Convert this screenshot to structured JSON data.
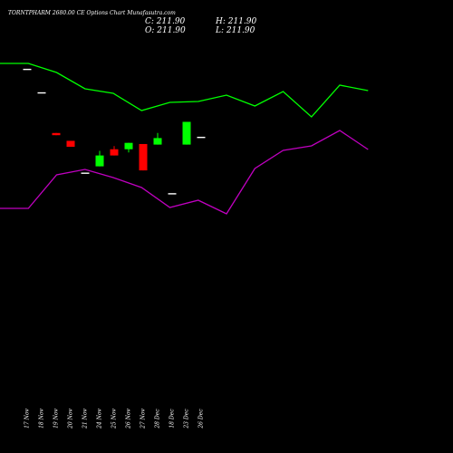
{
  "header": {
    "title": "TORNTPHARM 2680.00  CE Options  Chart Munafasutra.com",
    "close": "C: 211.90",
    "open": "O: 211.90",
    "high": "H: 211.90",
    "low": "L: 211.90"
  },
  "chart_data": {
    "type": "candlestick",
    "categories": [
      "17 Nov",
      "18 Nov",
      "19 Nov",
      "20 Nov",
      "21 Nov",
      "24 Nov",
      "25 Nov",
      "26 Nov",
      "27 Nov",
      "28 Dec",
      "18 Dec",
      "23 Dec",
      "26 Dec"
    ],
    "colors": {
      "background": "#000000",
      "up": "#00ff00",
      "down": "#ff0000",
      "neutral": "#ffffff",
      "line1": "#00ff00",
      "line2": "#c000c0"
    },
    "candles": [
      {
        "open": 258.8,
        "high": 258.8,
        "low": 258.8,
        "close": 258.8,
        "dir": "flat"
      },
      {
        "open": 242.6,
        "high": 242.6,
        "low": 242.6,
        "close": 242.6,
        "dir": "flat"
      },
      {
        "open": 214.5,
        "high": 214.5,
        "low": 213.0,
        "close": 213.0,
        "dir": "down"
      },
      {
        "open": 209.1,
        "high": 209.1,
        "low": 205.0,
        "close": 205.0,
        "dir": "down"
      },
      {
        "open": 187.2,
        "high": 187.2,
        "low": 187.2,
        "close": 187.2,
        "dir": "flat"
      },
      {
        "open": 191.5,
        "high": 202.2,
        "low": 191.5,
        "close": 199.0,
        "dir": "up"
      },
      {
        "open": 203.3,
        "high": 205.5,
        "low": 199.0,
        "close": 199.0,
        "dir": "down"
      },
      {
        "open": 203.3,
        "high": 207.7,
        "low": 201.1,
        "close": 207.7,
        "dir": "up"
      },
      {
        "open": 206.9,
        "high": 206.9,
        "low": 188.7,
        "close": 188.7,
        "dir": "down"
      },
      {
        "open": 206.5,
        "high": 214.5,
        "low": 206.5,
        "close": 211.0,
        "dir": "up"
      },
      {
        "open": 173.0,
        "high": 173.0,
        "low": 173.0,
        "close": 173.0,
        "dir": "flat"
      },
      {
        "open": 206.5,
        "high": 222.2,
        "low": 206.5,
        "close": 222.2,
        "dir": "up"
      },
      {
        "open": 211.9,
        "high": 211.9,
        "low": 211.9,
        "close": 211.9,
        "dir": "flat"
      }
    ],
    "line_series": [
      {
        "color": "#00ff00",
        "points": [
          [
            0,
            70
          ],
          [
            1,
            70
          ],
          [
            2,
            80
          ],
          [
            3,
            98
          ],
          [
            4,
            103
          ],
          [
            5,
            122
          ],
          [
            6,
            113
          ],
          [
            7,
            112
          ],
          [
            8,
            105
          ],
          [
            9,
            117
          ],
          [
            10,
            101
          ],
          [
            11,
            129
          ],
          [
            12,
            94
          ],
          [
            13,
            100
          ]
        ]
      },
      {
        "color": "#c000c0",
        "points": [
          [
            0,
            230
          ],
          [
            1,
            230
          ],
          [
            2,
            193
          ],
          [
            3,
            187
          ],
          [
            4,
            196
          ],
          [
            5,
            207
          ],
          [
            6,
            229
          ],
          [
            7,
            221
          ],
          [
            8,
            236
          ],
          [
            9,
            186
          ],
          [
            10,
            166
          ],
          [
            11,
            161
          ],
          [
            12,
            144
          ],
          [
            13,
            165
          ]
        ]
      }
    ],
    "xlabel": "",
    "ylabel": ""
  }
}
